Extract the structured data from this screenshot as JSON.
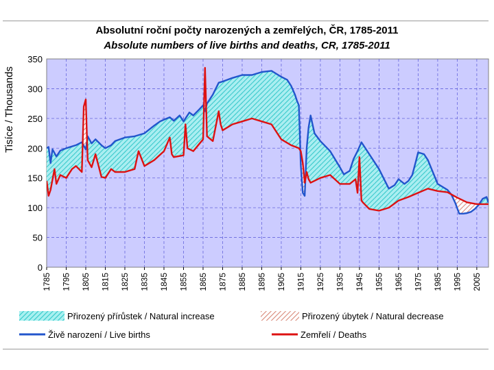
{
  "chart_data": {
    "type": "area",
    "title": "Absolutní roční počty narozených a zemřelých, ČR, 1785-2011",
    "subtitle": "Absolute numbers of live births and deaths, CR, 1785-2011",
    "ylabel": "Tisíce / Thousands",
    "xlabel": "",
    "xlim": [
      1785,
      2011
    ],
    "ylim": [
      0,
      350
    ],
    "yticks": [
      "0",
      "50",
      "100",
      "150",
      "200",
      "250",
      "300",
      "350"
    ],
    "xticks": [
      "1785",
      "1795",
      "1805",
      "1815",
      "1825",
      "1835",
      "1845",
      "1855",
      "1865",
      "1875",
      "1885",
      "1895",
      "1905",
      "1915",
      "1925",
      "1935",
      "1945",
      "1955",
      "1965",
      "1975",
      "1985",
      "1995",
      "2005"
    ],
    "grid": true,
    "series": [
      {
        "name": "Živě narození / Live births",
        "color": "#2255cc",
        "x": [
          1785,
          1786,
          1787,
          1788,
          1790,
          1792,
          1795,
          1800,
          1803,
          1805,
          1806,
          1808,
          1810,
          1813,
          1815,
          1818,
          1820,
          1825,
          1830,
          1835,
          1840,
          1843,
          1845,
          1848,
          1850,
          1853,
          1855,
          1858,
          1860,
          1863,
          1865,
          1866,
          1867,
          1870,
          1873,
          1875,
          1880,
          1885,
          1890,
          1895,
          1900,
          1905,
          1908,
          1910,
          1912,
          1913,
          1914,
          1915,
          1916,
          1917,
          1918,
          1919,
          1920,
          1921,
          1922,
          1925,
          1930,
          1935,
          1937,
          1940,
          1942,
          1944,
          1946,
          1947,
          1950,
          1955,
          1960,
          1963,
          1965,
          1968,
          1970,
          1972,
          1974,
          1975,
          1978,
          1980,
          1985,
          1990,
          1992,
          1994,
          1996,
          1998,
          2000,
          2002,
          2004,
          2006,
          2008,
          2010,
          2011
        ],
        "y": [
          200,
          202,
          175,
          198,
          186,
          196,
          200,
          205,
          210,
          198,
          220,
          208,
          215,
          205,
          200,
          205,
          212,
          218,
          220,
          225,
          238,
          245,
          248,
          252,
          246,
          255,
          245,
          260,
          255,
          265,
          272,
          262,
          275,
          290,
          310,
          312,
          318,
          323,
          323,
          328,
          330,
          320,
          315,
          305,
          290,
          280,
          272,
          172,
          125,
          120,
          200,
          235,
          255,
          240,
          225,
          212,
          195,
          168,
          156,
          162,
          182,
          195,
          210,
          205,
          190,
          165,
          132,
          138,
          148,
          140,
          145,
          155,
          180,
          193,
          190,
          180,
          140,
          130,
          122,
          108,
          90,
          90,
          91,
          93,
          98,
          105,
          115,
          118,
          108
        ]
      },
      {
        "name": "Zemřelí / Deaths",
        "color": "#dd1111",
        "x": [
          1785,
          1786,
          1787,
          1789,
          1790,
          1792,
          1795,
          1798,
          1800,
          1803,
          1804,
          1805,
          1806,
          1808,
          1810,
          1813,
          1815,
          1818,
          1820,
          1825,
          1830,
          1832,
          1835,
          1840,
          1845,
          1848,
          1849,
          1850,
          1855,
          1856,
          1857,
          1860,
          1865,
          1866,
          1867,
          1870,
          1873,
          1874,
          1875,
          1880,
          1885,
          1890,
          1895,
          1900,
          1905,
          1910,
          1914,
          1915,
          1916,
          1917,
          1918,
          1919,
          1920,
          1925,
          1930,
          1935,
          1940,
          1943,
          1944,
          1945,
          1946,
          1947,
          1950,
          1955,
          1960,
          1965,
          1970,
          1975,
          1980,
          1985,
          1990,
          1995,
          2000,
          2005,
          2008,
          2011
        ],
        "y": [
          145,
          120,
          130,
          165,
          140,
          155,
          150,
          165,
          170,
          160,
          270,
          282,
          180,
          168,
          190,
          152,
          150,
          165,
          160,
          160,
          165,
          195,
          170,
          180,
          195,
          218,
          190,
          185,
          188,
          240,
          200,
          195,
          215,
          335,
          220,
          212,
          262,
          240,
          230,
          240,
          245,
          250,
          245,
          240,
          215,
          205,
          200,
          195,
          175,
          142,
          160,
          148,
          142,
          150,
          155,
          140,
          140,
          148,
          125,
          185,
          112,
          108,
          98,
          95,
          100,
          112,
          118,
          125,
          132,
          128,
          126,
          117,
          109,
          106,
          106,
          106
        ]
      }
    ],
    "fill_areas": [
      {
        "name": "Přirozený přírůstek / Natural increase",
        "between": [
          "Živě narození / Live births",
          "Zemřelí / Deaths"
        ],
        "where": "births > deaths",
        "color": "#66dddd"
      },
      {
        "name": "Přirozený úbytek / Natural decrease",
        "between": [
          "Zemřelí / Deaths",
          "Živě narození / Live births"
        ],
        "where": "deaths > births",
        "color": "#e09080"
      }
    ],
    "legend_labels": {
      "increase": "Přirozený přírůstek / Natural increase",
      "decrease": "Přirozený úbytek / Natural decrease",
      "births": "Živě narození / Live births",
      "deaths": "Zemřelí / Deaths"
    }
  }
}
